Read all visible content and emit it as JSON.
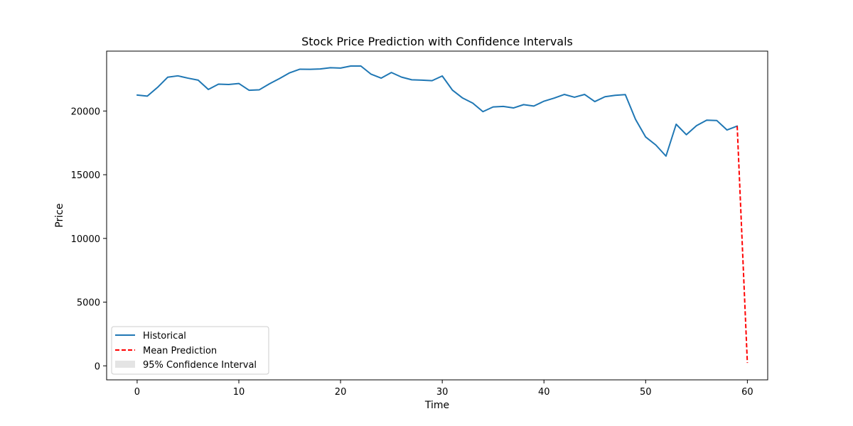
{
  "chart_data": {
    "type": "line",
    "title": "Stock Price Prediction with Confidence Intervals",
    "xlabel": "Time",
    "ylabel": "Price",
    "xlim": [
      -3,
      62
    ],
    "ylim": [
      -1100,
      24700
    ],
    "xticks": [
      0,
      10,
      20,
      30,
      40,
      50,
      60
    ],
    "yticks": [
      0,
      5000,
      10000,
      15000,
      20000
    ],
    "grid": false,
    "legend_position": "lower-left",
    "colors": {
      "historical": "#1f77b4",
      "prediction": "#ff0000",
      "confidence": "#d9d9d9"
    },
    "series": [
      {
        "name": "Historical",
        "style": "solid",
        "x": [
          0,
          1,
          2,
          3,
          4,
          5,
          6,
          7,
          8,
          9,
          10,
          11,
          12,
          13,
          14,
          15,
          16,
          17,
          18,
          19,
          20,
          21,
          22,
          23,
          24,
          25,
          26,
          27,
          28,
          29,
          30,
          31,
          32,
          33,
          34,
          35,
          36,
          37,
          38,
          39,
          40,
          41,
          42,
          43,
          44,
          45,
          46,
          47,
          48,
          49,
          50,
          51,
          52,
          53,
          54,
          55,
          56,
          57,
          58,
          59
        ],
        "values": [
          21250,
          21170,
          21850,
          22650,
          22760,
          22580,
          22420,
          21690,
          22110,
          22080,
          22160,
          21630,
          21660,
          22130,
          22550,
          23000,
          23280,
          23270,
          23300,
          23400,
          23370,
          23530,
          23530,
          22890,
          22580,
          23020,
          22660,
          22450,
          22420,
          22380,
          22750,
          21640,
          21020,
          20620,
          19950,
          20320,
          20360,
          20240,
          20500,
          20390,
          20770,
          21010,
          21300,
          21080,
          21300,
          20740,
          21120,
          21230,
          21290,
          19350,
          17960,
          17330,
          16460,
          18960,
          18140,
          18850,
          19280,
          19250,
          18510,
          18820
        ]
      },
      {
        "name": "Mean Prediction",
        "style": "dashed",
        "x": [
          59,
          60
        ],
        "values": [
          18820,
          230
        ]
      },
      {
        "name": "95% Confidence Interval",
        "style": "band",
        "x": [],
        "lower": [],
        "upper": []
      }
    ]
  }
}
